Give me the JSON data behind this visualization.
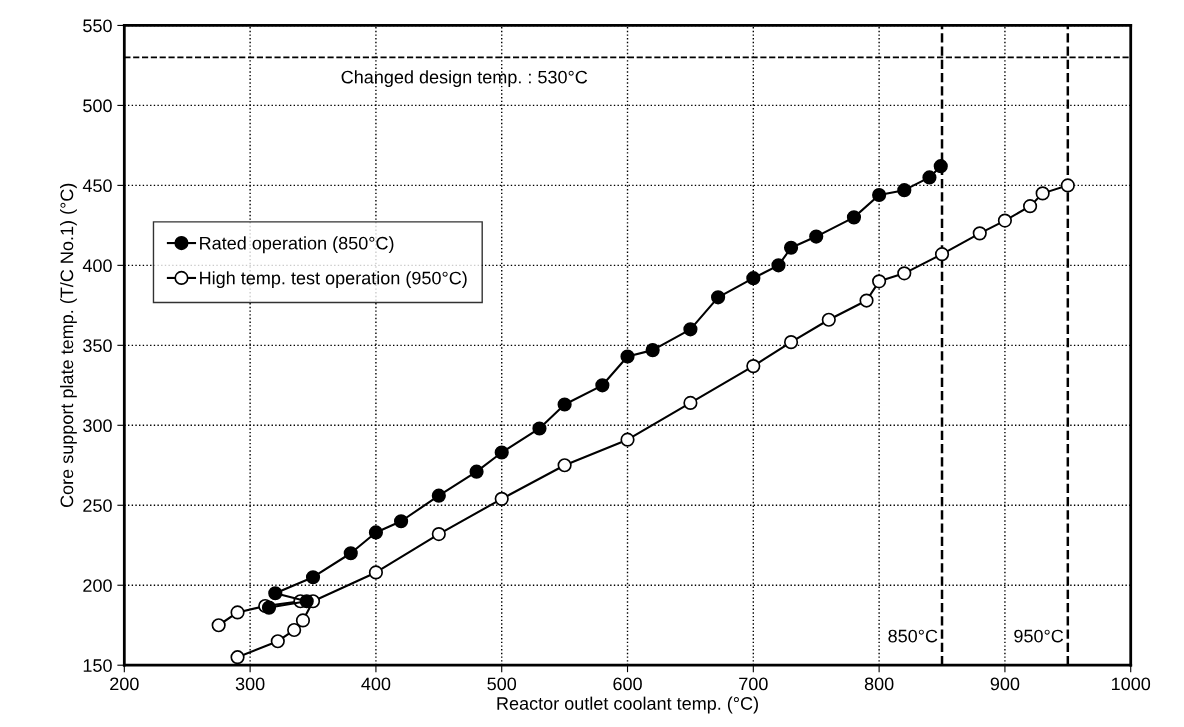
{
  "chart_data": {
    "type": "line",
    "xlabel": "Reactor outlet coolant temp. (°C)",
    "ylabel": "Core support plate temp. (T/C No.1) (°C)",
    "xlim": [
      200,
      1000
    ],
    "xticks": [
      200,
      300,
      400,
      500,
      600,
      700,
      800,
      900,
      1000
    ],
    "ylim": [
      150,
      550
    ],
    "yticks": [
      150,
      200,
      250,
      300,
      350,
      400,
      450,
      500,
      550
    ],
    "grid": true,
    "legend": "left",
    "marker": "circle",
    "line_style": "solid",
    "ref_lines": [
      {
        "axis": "y",
        "value": 530,
        "label": "Changed design temp. : 530°C",
        "line_style": "dashed",
        "color": "#000000"
      },
      {
        "axis": "x",
        "value": 850,
        "label": "850°C",
        "line_style": "dashed",
        "color": "#000000"
      },
      {
        "axis": "x",
        "value": 950,
        "label": "950°C",
        "line_style": "dashed",
        "color": "#000000"
      }
    ],
    "series": [
      {
        "name": "Rated operation (850°C)",
        "color": "#000000",
        "x": [
          315,
          345,
          320,
          350,
          380,
          400,
          420,
          450,
          480,
          500,
          530,
          550,
          580,
          600,
          620,
          650,
          672,
          700,
          720,
          730,
          750,
          780,
          800,
          820,
          840,
          849
        ],
        "values": [
          186,
          190,
          195,
          205,
          220,
          233,
          240,
          256,
          271,
          283,
          298,
          313,
          325,
          343,
          347,
          360,
          380,
          392,
          400,
          411,
          418,
          430,
          444,
          447,
          455,
          462
        ]
      },
      {
        "name": "High temp. test operation (950°C)",
        "color": "#ffffff",
        "x": [
          275,
          290,
          312,
          340,
          null,
          290,
          322,
          335,
          342,
          350,
          400,
          450,
          500,
          550,
          600,
          650,
          700,
          730,
          760,
          790,
          800,
          820,
          850,
          880,
          900,
          920,
          930,
          950
        ],
        "values": [
          175,
          183,
          187,
          190,
          null,
          155,
          165,
          172,
          178,
          190,
          208,
          232,
          254,
          275,
          291,
          314,
          337,
          352,
          366,
          378,
          390,
          395,
          407,
          420,
          428,
          437,
          445,
          450
        ]
      }
    ]
  }
}
